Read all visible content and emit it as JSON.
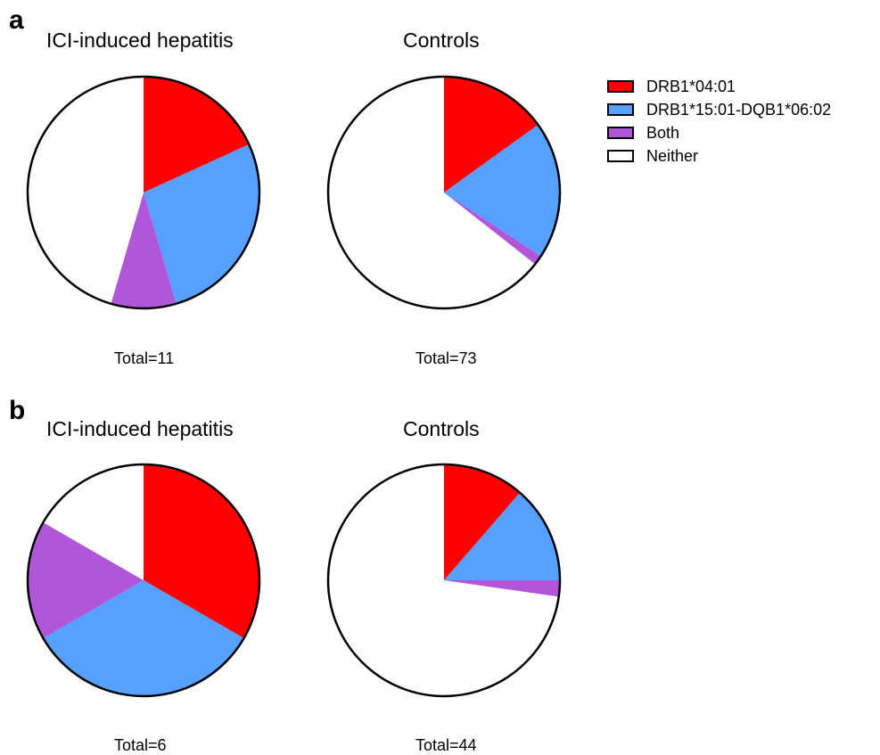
{
  "panels": [
    {
      "letter": "a"
    },
    {
      "letter": "b"
    }
  ],
  "legend": [
    {
      "label": "DRB1*04:01",
      "color": "#ff0000"
    },
    {
      "label": "DRB1*15:01-DQB1*06:02",
      "color": "#56a0ff"
    },
    {
      "label": "Both",
      "color": "#b156d9"
    },
    {
      "label": "Neither",
      "color": "#ffffff"
    }
  ],
  "chart_data": [
    {
      "type": "pie",
      "panel": "a",
      "title": "ICI-induced hepatitis",
      "total_label": "Total=11",
      "categories": [
        "DRB1*04:01",
        "DRB1*15:01-DQB1*06:02",
        "Both",
        "Neither"
      ],
      "values": [
        2,
        3,
        1,
        5
      ]
    },
    {
      "type": "pie",
      "panel": "a",
      "title": "Controls",
      "total_label": "Total=73",
      "categories": [
        "DRB1*04:01",
        "DRB1*15:01-DQB1*06:02",
        "Both",
        "Neither"
      ],
      "values": [
        11,
        14,
        1,
        47
      ]
    },
    {
      "type": "pie",
      "panel": "b",
      "title": "ICI-induced hepatitis",
      "total_label": "Total=6",
      "categories": [
        "DRB1*04:01",
        "DRB1*15:01-DQB1*06:02",
        "Both",
        "Neither"
      ],
      "values": [
        2,
        2,
        1,
        1
      ]
    },
    {
      "type": "pie",
      "panel": "b",
      "title": "Controls",
      "total_label": "Total=44",
      "categories": [
        "DRB1*04:01",
        "DRB1*15:01-DQB1*06:02",
        "Both",
        "Neither"
      ],
      "values": [
        5,
        6,
        1,
        32
      ]
    }
  ]
}
